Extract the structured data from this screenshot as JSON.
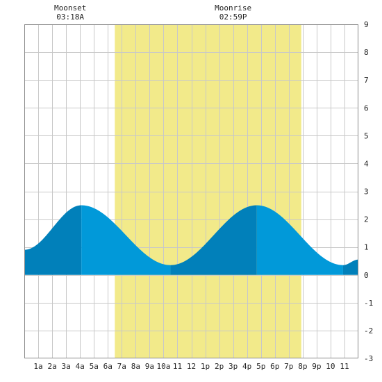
{
  "chart_data": {
    "type": "area",
    "x_unit": "hour",
    "xlim": [
      0,
      24
    ],
    "ylim": [
      -3,
      9
    ],
    "y_ticks": [
      9,
      8,
      7,
      6,
      5,
      4,
      3,
      2,
      1,
      0,
      -1,
      -2,
      -3
    ],
    "x_ticks": [
      {
        "hour": 1,
        "label": "1a"
      },
      {
        "hour": 2,
        "label": "2a"
      },
      {
        "hour": 3,
        "label": "3a"
      },
      {
        "hour": 4,
        "label": "4a"
      },
      {
        "hour": 5,
        "label": "5a"
      },
      {
        "hour": 6,
        "label": "6a"
      },
      {
        "hour": 7,
        "label": "7a"
      },
      {
        "hour": 8,
        "label": "8a"
      },
      {
        "hour": 9,
        "label": "9a"
      },
      {
        "hour": 10,
        "label": "10a"
      },
      {
        "hour": 11,
        "label": "11"
      },
      {
        "hour": 12,
        "label": "12"
      },
      {
        "hour": 13,
        "label": "1p"
      },
      {
        "hour": 14,
        "label": "2p"
      },
      {
        "hour": 15,
        "label": "3p"
      },
      {
        "hour": 16,
        "label": "4p"
      },
      {
        "hour": 17,
        "label": "5p"
      },
      {
        "hour": 18,
        "label": "6p"
      },
      {
        "hour": 19,
        "label": "7p"
      },
      {
        "hour": 20,
        "label": "8p"
      },
      {
        "hour": 21,
        "label": "9p"
      },
      {
        "hour": 22,
        "label": "10"
      },
      {
        "hour": 23,
        "label": "11"
      }
    ],
    "daylight": {
      "start_hour": 6.5,
      "end_hour": 19.9
    },
    "tide_extremes": [
      {
        "hour": 0.0,
        "height": 0.9
      },
      {
        "hour": 4.1,
        "height": 2.5
      },
      {
        "hour": 10.5,
        "height": 0.35
      },
      {
        "hour": 16.7,
        "height": 2.5
      },
      {
        "hour": 22.9,
        "height": 0.35
      },
      {
        "hour": 24.0,
        "height": 0.55
      }
    ],
    "moon_events": [
      {
        "name": "Moonset",
        "time": "03:18A",
        "hour": 3.3
      },
      {
        "name": "Moonrise",
        "time": "02:59P",
        "hour": 15.0
      }
    ],
    "grid": true,
    "colors": {
      "daylight": "#f2ea8a",
      "tide_rising": "#0180ba",
      "tide_falling": "#0199d9",
      "grid": "#c8c8c8",
      "frame": "#888888"
    }
  }
}
